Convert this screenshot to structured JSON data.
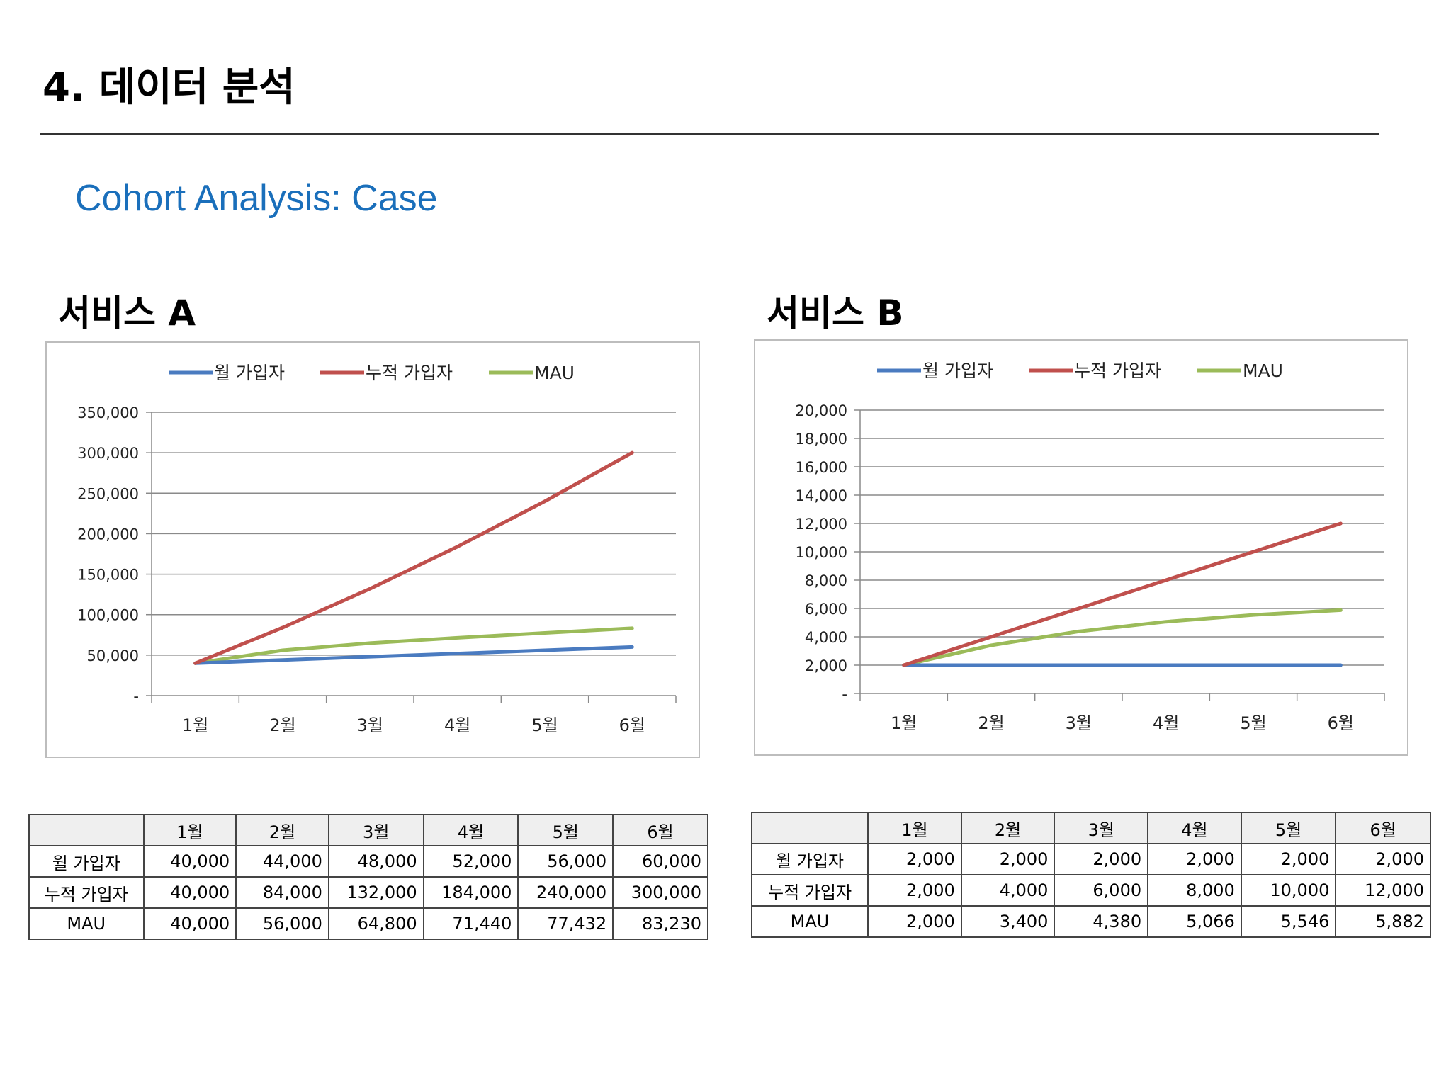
{
  "page": {
    "title": "4. 데이터 분석",
    "subtitle": "Cohort Analysis: Case"
  },
  "colors": {
    "subtitle": "#1a6fbb",
    "monthly": "#4a7bc0",
    "cumulative": "#c0504d",
    "mau": "#9bbb59"
  },
  "services": [
    {
      "label": "서비스 A"
    },
    {
      "label": "서비스 B"
    }
  ],
  "chart_data": [
    {
      "type": "line",
      "categories": [
        "1월",
        "2월",
        "3월",
        "4월",
        "5월",
        "6월"
      ],
      "series": [
        {
          "name": "월 가입자",
          "values": [
            40000,
            44000,
            48000,
            52000,
            56000,
            60000
          ]
        },
        {
          "name": "누적 가입자",
          "values": [
            40000,
            84000,
            132000,
            184000,
            240000,
            300000
          ]
        },
        {
          "name": "MAU",
          "values": [
            40000,
            56000,
            64800,
            71440,
            77432,
            83230
          ]
        }
      ],
      "yticks": [
        "-",
        "50,000",
        "100,000",
        "150,000",
        "200,000",
        "250,000",
        "300,000",
        "350,000"
      ],
      "ylim": [
        0,
        350000
      ],
      "grid": true,
      "legend": "top"
    },
    {
      "type": "line",
      "categories": [
        "1월",
        "2월",
        "3월",
        "4월",
        "5월",
        "6월"
      ],
      "series": [
        {
          "name": "월 가입자",
          "values": [
            2000,
            2000,
            2000,
            2000,
            2000,
            2000
          ]
        },
        {
          "name": "누적 가입자",
          "values": [
            2000,
            4000,
            6000,
            8000,
            10000,
            12000
          ]
        },
        {
          "name": "MAU",
          "values": [
            2000,
            3400,
            4380,
            5066,
            5546,
            5882
          ]
        }
      ],
      "yticks": [
        "-",
        "2,000",
        "4,000",
        "6,000",
        "8,000",
        "10,000",
        "12,000",
        "14,000",
        "16,000",
        "18,000",
        "20,000"
      ],
      "ylim": [
        0,
        20000
      ],
      "grid": true,
      "legend": "top"
    }
  ],
  "tables": [
    {
      "headers": [
        "",
        "1월",
        "2월",
        "3월",
        "4월",
        "5월",
        "6월"
      ],
      "rows": [
        [
          "월 가입자",
          "40,000",
          "44,000",
          "48,000",
          "52,000",
          "56,000",
          "60,000"
        ],
        [
          "누적 가입자",
          "40,000",
          "84,000",
          "132,000",
          "184,000",
          "240,000",
          "300,000"
        ],
        [
          "MAU",
          "40,000",
          "56,000",
          "64,800",
          "71,440",
          "77,432",
          "83,230"
        ]
      ]
    },
    {
      "headers": [
        "",
        "1월",
        "2월",
        "3월",
        "4월",
        "5월",
        "6월"
      ],
      "rows": [
        [
          "월 가입자",
          "2,000",
          "2,000",
          "2,000",
          "2,000",
          "2,000",
          "2,000"
        ],
        [
          "누적 가입자",
          "2,000",
          "4,000",
          "6,000",
          "8,000",
          "10,000",
          "12,000"
        ],
        [
          "MAU",
          "2,000",
          "3,400",
          "4,380",
          "5,066",
          "5,546",
          "5,882"
        ]
      ]
    }
  ]
}
